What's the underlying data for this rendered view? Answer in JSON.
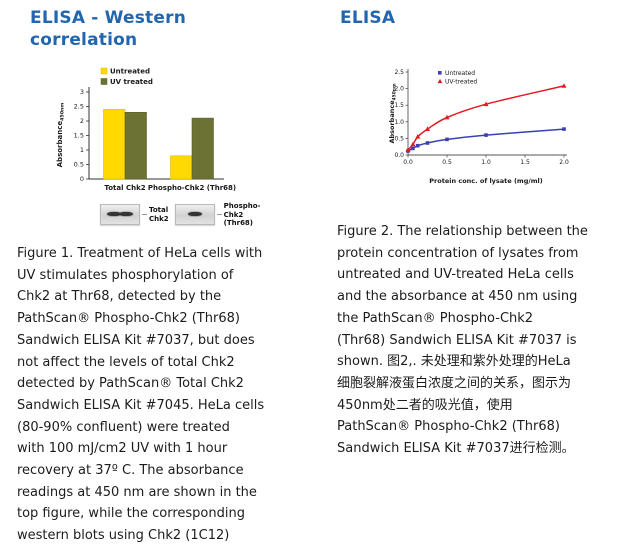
{
  "colors": {
    "heading": "#2166ae",
    "caption_text": "#1c1c1c",
    "axis": "#444444",
    "untreated_bar": "#ffd900",
    "untreated_bar_edge": "#e3b800",
    "uv_bar": "#6b7233",
    "untreated_line": "#3b41b2",
    "uv_line": "#e31b23"
  },
  "left": {
    "heading": "ELISA - Western correlation",
    "blots": [
      {
        "bands": 2,
        "label_lines": [
          "Total",
          "Chk2"
        ]
      },
      {
        "bands": 1,
        "label_lines": [
          "Phospho-",
          "Chk2",
          "(Thr68)"
        ]
      }
    ],
    "caption_lines": [
      "Figure 1. Treatment of HeLa cells with",
      "UV stimulates phosphorylation of",
      "Chk2 at Thr68, detected by the",
      "PathScan® Phospho-Chk2 (Thr68)",
      "Sandwich ELISA Kit #7037, but does",
      "not affect the levels of total Chk2",
      "detected by PathScan® Total Chk2",
      "Sandwich ELISA Kit #7045. HeLa cells",
      "(80-90% confluent) were treated",
      "with 100 mJ/cm2 UV with 1 hour",
      "recovery at 37º C. The absorbance",
      "readings at 450 nm are shown in the",
      "top figure, while the corresponding",
      "western blots using Chk2 (1C12)"
    ]
  },
  "right": {
    "heading": "ELISA",
    "caption_lines": [
      "Figure 2. The relationship between the",
      "protein concentration of lysates from",
      "untreated and UV-treated HeLa cells",
      "and the absorbance at 450 nm using",
      "the PathScan® Phospho-Chk2",
      "(Thr68) Sandwich ELISA Kit #7037 is",
      "shown. 图2,. 未处理和紫外处理的HeLa",
      "细胞裂解液蛋白浓度之间的关系，图示为",
      "450nm处二者的吸光值，使用",
      "PathScan® Phospho-Chk2 (Thr68)",
      "Sandwich ELISA Kit #7037进行检测。"
    ]
  },
  "chart_data": [
    {
      "type": "bar",
      "title": "",
      "categories": [
        "Total Chk2",
        "Phospho-Chk2 (Thr68)"
      ],
      "series": [
        {
          "name": "Untreated",
          "color": "#ffd900",
          "edge": "#e3b800",
          "values": [
            2.4,
            0.8
          ]
        },
        {
          "name": "UV treated",
          "color": "#6b7233",
          "edge": "#5a6128",
          "values": [
            2.3,
            2.1
          ]
        }
      ],
      "xlabel": "",
      "ylabel": "Absorbance",
      "ylabel_sub": "450nm",
      "ylim": [
        0,
        3
      ],
      "ytick_step": 0.5,
      "grid": false,
      "legend_position": "top"
    },
    {
      "type": "line",
      "title": "",
      "x": [
        0,
        0.0625,
        0.125,
        0.25,
        0.5,
        1.0,
        2.0
      ],
      "series": [
        {
          "name": "Untreated",
          "color": "#3b41b2",
          "marker": "square",
          "values": [
            0.12,
            0.2,
            0.28,
            0.36,
            0.47,
            0.6,
            0.78
          ]
        },
        {
          "name": "UV-treated",
          "color": "#e31b23",
          "marker": "triangle",
          "values": [
            0.15,
            0.32,
            0.55,
            0.78,
            1.13,
            1.53,
            2.08
          ]
        }
      ],
      "xlabel": "Protein conc. of lysate (mg/ml)",
      "ylabel": "Absorbance",
      "ylabel_sub": "450nm",
      "xlim": [
        0,
        2.0
      ],
      "ylim": [
        0,
        2.5
      ],
      "xticks": [
        0.0,
        0.5,
        1.0,
        1.5,
        2.0
      ],
      "yticks": [
        0.0,
        0.5,
        1.0,
        1.5,
        2.0,
        2.5
      ],
      "grid": false,
      "legend_position": "top-left"
    }
  ]
}
